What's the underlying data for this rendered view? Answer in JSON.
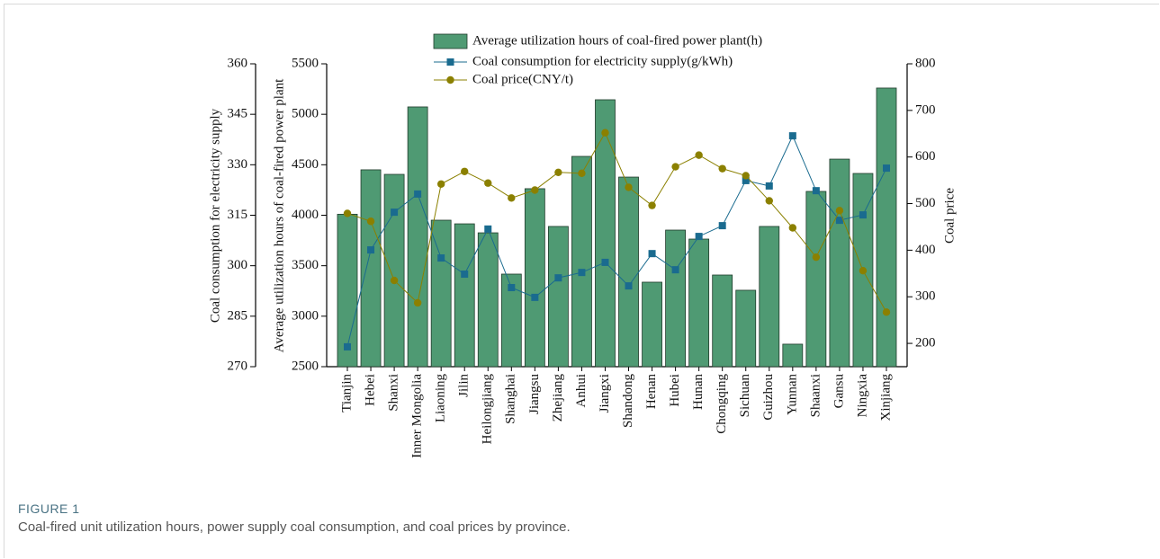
{
  "chart_data": {
    "type": "bar_line_3axis",
    "categories": [
      "Tianjin",
      "Hebei",
      "Shanxi",
      "Inner Mongolia",
      "Liaoning",
      "Jilin",
      "Heilongjiang",
      "Shanghai",
      "Jiangsu",
      "Zhejiang",
      "Anhui",
      "Jiangxi",
      "Shandong",
      "Henan",
      "Hubei",
      "Hunan",
      "Chongqing",
      "Sichuan",
      "Guizhou",
      "Yunnan",
      "Shaanxi",
      "Gansu",
      "Ningxia",
      "Xinjiang"
    ],
    "series": [
      {
        "name": "Average utilization hours of coal-fired power plant(h)",
        "color": "#4f9a73",
        "axis": "y",
        "values": [
          4010,
          4450,
          4405,
          5073,
          3951,
          3915,
          3826,
          3417,
          4263,
          3889,
          4583,
          5144,
          4378,
          3337,
          3853,
          3764,
          3408,
          3257,
          3889,
          2723,
          4236,
          4556,
          4414,
          5260
        ]
      },
      {
        "name": "Coal consumption for electricity supply(g/kWh)",
        "color": "#1a6b8f",
        "axis": "y3",
        "values": [
          275.9,
          304.7,
          315.9,
          321.3,
          302.3,
          297.5,
          310.9,
          293.5,
          290.6,
          296.4,
          298.0,
          301.0,
          294.0,
          303.6,
          298.8,
          308.7,
          311.9,
          325.3,
          323.7,
          338.6,
          322.3,
          313.5,
          315.1,
          329.0
        ]
      },
      {
        "name": "Coal price(CNY/t)",
        "color": "#8b8000",
        "axis": "y2",
        "values": [
          479,
          462,
          335,
          287,
          542,
          569,
          544,
          512,
          529,
          567,
          565,
          652,
          535,
          496,
          579,
          604,
          575,
          560,
          506,
          448,
          385,
          485,
          356,
          267
        ]
      }
    ],
    "y_label": "Average utilization hours of coal-fired power plant",
    "ylim": [
      2500,
      5500
    ],
    "yticks": [
      2500,
      3000,
      3500,
      4000,
      4500,
      5000,
      5500
    ],
    "y2_label": "Coal price",
    "y2lim": [
      150,
      800
    ],
    "y2ticks": [
      200,
      300,
      400,
      500,
      600,
      700,
      800
    ],
    "y3_label": "Coal consumption for electricity supply",
    "y3lim": [
      270,
      360
    ],
    "y3ticks": [
      270,
      285,
      300,
      315,
      330,
      345,
      360
    ],
    "figure_label": "FIGURE 1",
    "caption": "Coal-fired unit utilization hours, power supply coal consumption, and coal prices by province."
  }
}
